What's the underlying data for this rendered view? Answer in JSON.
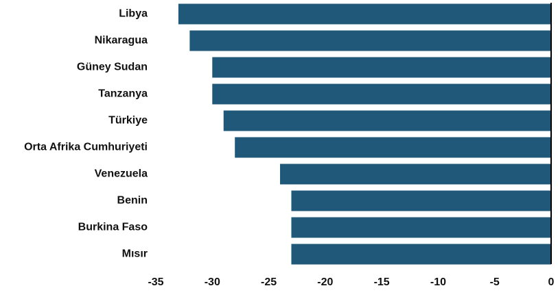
{
  "chart_data": {
    "type": "bar",
    "orientation": "horizontal",
    "categories": [
      "Libya",
      "Nikaragua",
      "Güney Sudan",
      "Tanzanya",
      "Türkiye",
      "Orta Afrika Cumhuriyeti",
      "Venezuela",
      "Benin",
      "Burkina Faso",
      "Mısır"
    ],
    "values": [
      -33,
      -32,
      -30,
      -30,
      -29,
      -28,
      -24,
      -23,
      -23,
      -23
    ],
    "color": "#1f5878",
    "xlim": [
      -35,
      0
    ],
    "xticks": [
      -35,
      -30,
      -25,
      -20,
      -15,
      -10,
      -5,
      0
    ]
  }
}
